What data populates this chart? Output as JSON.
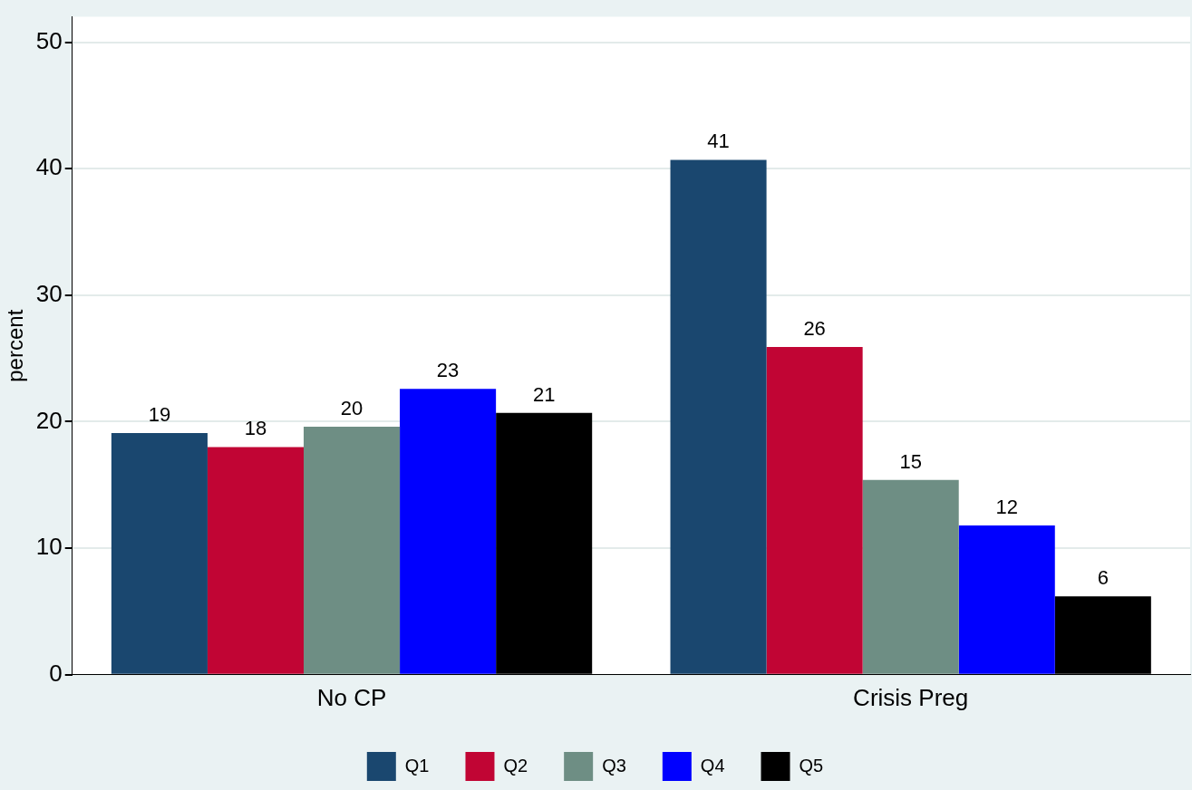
{
  "chart_data": {
    "type": "bar",
    "categories": [
      "No CP",
      "Crisis Preg"
    ],
    "ylabel": "percent",
    "ylim": [
      0,
      52
    ],
    "yticks": [
      0,
      10,
      20,
      30,
      40,
      50
    ],
    "grid": "y",
    "legend": "bottom",
    "series": [
      {
        "name": "Q1",
        "color": "#1a476f",
        "values": [
          19.1,
          40.7
        ],
        "value_labels": [
          "19",
          "41"
        ]
      },
      {
        "name": "Q2",
        "color": "#c10534",
        "values": [
          18.0,
          25.9
        ],
        "value_labels": [
          "18",
          "26"
        ]
      },
      {
        "name": "Q3",
        "color": "#6e8e84",
        "values": [
          19.6,
          15.4
        ],
        "value_labels": [
          "20",
          "15"
        ]
      },
      {
        "name": "Q4",
        "color": "#0000ff",
        "values": [
          22.6,
          11.8
        ],
        "value_labels": [
          "23",
          "12"
        ]
      },
      {
        "name": "Q5",
        "color": "#000000",
        "values": [
          20.7,
          6.2
        ],
        "value_labels": [
          "21",
          "6"
        ]
      }
    ]
  }
}
